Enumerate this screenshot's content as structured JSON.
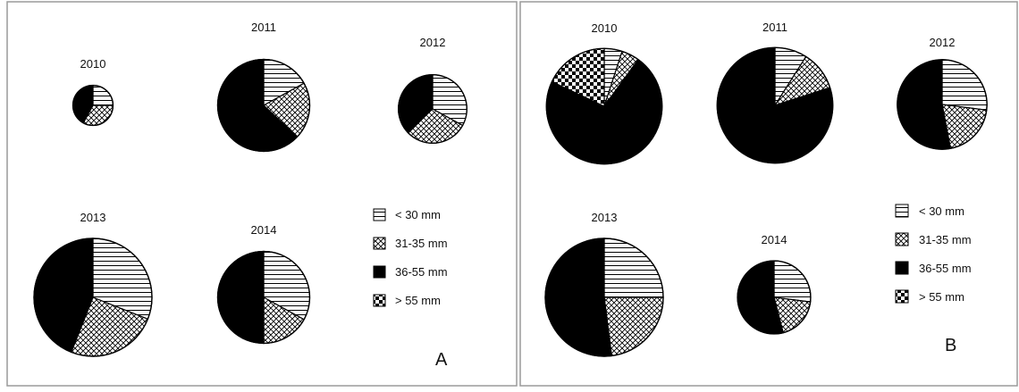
{
  "colors": {
    "outline": "#000000",
    "panel_border": "#9a9a9a",
    "fill_black": "#000000",
    "background": "#ffffff"
  },
  "legend": {
    "items": [
      {
        "label": "< 30 mm",
        "pattern": "horizontal-lines"
      },
      {
        "label": "31-35 mm",
        "pattern": "diagonal-crosshatch"
      },
      {
        "label": "36-55 mm",
        "pattern": "solid-black"
      },
      {
        "label": "> 55 mm",
        "pattern": "checkerboard"
      }
    ]
  },
  "chart_data": [
    {
      "type": "pie",
      "panel": "A",
      "panel_label": "A",
      "categories": [
        "< 30 mm",
        "31-35 mm",
        "36-55 mm",
        "> 55 mm"
      ],
      "pies": [
        {
          "year": "2010",
          "values": [
            25,
            33,
            42,
            0
          ],
          "relative_size": 0.34
        },
        {
          "year": "2011",
          "values": [
            17,
            20,
            63,
            0
          ],
          "relative_size": 0.78
        },
        {
          "year": "2012",
          "values": [
            33,
            30,
            37,
            0
          ],
          "relative_size": 0.58
        },
        {
          "year": "2013",
          "values": [
            31,
            25,
            44,
            0
          ],
          "relative_size": 1.0
        },
        {
          "year": "2014",
          "values": [
            33,
            17,
            50,
            0
          ],
          "relative_size": 0.78
        }
      ]
    },
    {
      "type": "pie",
      "panel": "B",
      "panel_label": "B",
      "categories": [
        "< 30 mm",
        "31-35 mm",
        "36-55 mm",
        "> 55 mm"
      ],
      "pies": [
        {
          "year": "2010",
          "values": [
            5,
            5,
            72,
            18
          ],
          "relative_size": 0.98
        },
        {
          "year": "2011",
          "values": [
            9,
            11,
            80,
            0
          ],
          "relative_size": 0.98
        },
        {
          "year": "2012",
          "values": [
            27,
            20,
            53,
            0
          ],
          "relative_size": 0.76
        },
        {
          "year": "2013",
          "values": [
            25,
            23,
            52,
            0
          ],
          "relative_size": 1.0
        },
        {
          "year": "2014",
          "values": [
            27,
            19,
            54,
            0
          ],
          "relative_size": 0.62
        }
      ]
    }
  ]
}
